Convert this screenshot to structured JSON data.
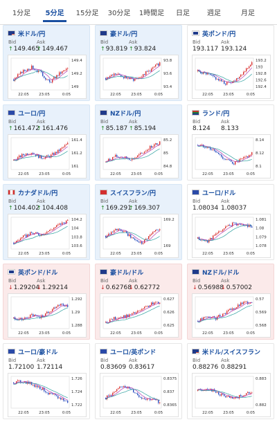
{
  "tabs": [
    {
      "label": "1分足",
      "active": false
    },
    {
      "label": "5分足",
      "active": true
    },
    {
      "label": "15分足",
      "active": false
    },
    {
      "label": "30分足",
      "active": false
    },
    {
      "label": "1時間足",
      "active": false
    },
    {
      "label": "日足",
      "active": false
    },
    {
      "label": "週足",
      "active": false
    },
    {
      "label": "月足",
      "active": false
    }
  ],
  "labels": {
    "bid": "Bid",
    "ask": "Ask"
  },
  "colors": {
    "up_bg": "#e8f1fb",
    "down_bg": "#fbeaea",
    "title": "#1a4fa0",
    "candle_up": "#d93030",
    "candle_down": "#2b4fc0",
    "ma1": "#b03ab0",
    "ma2": "#2ea0a0"
  },
  "pairs": [
    {
      "name": "米ドル/円",
      "flag": "us-flag",
      "state": "up",
      "bid": "149.465",
      "ask": "149.467",
      "arrow": "up",
      "x_labels": [
        "22:05",
        "23:05",
        "0:05"
      ],
      "y_labels": [
        "149.4",
        "149.2",
        "149"
      ],
      "trend": [
        0.3,
        0.6,
        0.75,
        0.55,
        0.2,
        0.5,
        0.7
      ]
    },
    {
      "name": "豪ドル/円",
      "flag": "au-flag",
      "state": "up",
      "bid": "93.819",
      "ask": "93.824",
      "arrow": "up",
      "x_labels": [
        "22:05",
        "23:05",
        "0:05"
      ],
      "y_labels": [
        "93.8",
        "93.6",
        "93.4"
      ],
      "trend": [
        0.35,
        0.5,
        0.4,
        0.3,
        0.45,
        0.65,
        0.9
      ]
    },
    {
      "name": "英ポンド/円",
      "flag": "gb-flag",
      "state": "neutral",
      "bid": "193.117",
      "ask": "193.124",
      "arrow": "none",
      "x_labels": [
        "22:05",
        "23:05",
        "0:05"
      ],
      "y_labels": [
        "193.2",
        "193",
        "192.8",
        "192.6",
        "192.4"
      ],
      "trend": [
        0.6,
        0.5,
        0.35,
        0.15,
        0.25,
        0.55,
        0.9
      ]
    },
    {
      "name": "ユーロ/円",
      "flag": "eu-flag",
      "state": "up",
      "bid": "161.472",
      "ask": "161.476",
      "arrow": "up",
      "x_labels": [
        "22:05",
        "23:05",
        "0:05"
      ],
      "y_labels": [
        "161.4",
        "161.2",
        "161"
      ],
      "trend": [
        0.25,
        0.45,
        0.55,
        0.35,
        0.4,
        0.6,
        0.85
      ]
    },
    {
      "name": "NZドル/円",
      "flag": "nz-flag",
      "state": "up",
      "bid": "85.187",
      "ask": "85.194",
      "arrow": "up",
      "x_labels": [
        "22:05",
        "23:05",
        "0:05"
      ],
      "y_labels": [
        "85.2",
        "85",
        "84.8"
      ],
      "trend": [
        0.2,
        0.4,
        0.35,
        0.3,
        0.5,
        0.75,
        0.9
      ]
    },
    {
      "name": "ランド/円",
      "flag": "za-flag",
      "state": "neutral",
      "bid": "8.124",
      "ask": "8.133",
      "arrow": "none",
      "x_labels": [
        "22:05",
        "23:05",
        "0:05"
      ],
      "y_labels": [
        "8.14",
        "8.12",
        "8.1"
      ],
      "trend": [
        0.8,
        0.75,
        0.55,
        0.3,
        0.15,
        0.3,
        0.5
      ]
    },
    {
      "name": "カナダドル/円",
      "flag": "ca-flag",
      "state": "up",
      "bid": "104.402",
      "ask": "104.408",
      "arrow": "up",
      "x_labels": [
        "22:05",
        "23:05",
        "0:05"
      ],
      "y_labels": [
        "104.2",
        "104",
        "103.8",
        "103.6"
      ],
      "trend": [
        0.15,
        0.35,
        0.5,
        0.45,
        0.6,
        0.8,
        0.95
      ]
    },
    {
      "name": "スイスフラン/円",
      "flag": "ch-flag",
      "state": "up",
      "bid": "169.291",
      "ask": "169.307",
      "arrow": "up",
      "x_labels": [
        "22:05",
        "23:05",
        "0:05"
      ],
      "y_labels": [
        "169.2",
        "169"
      ],
      "trend": [
        0.4,
        0.65,
        0.55,
        0.3,
        0.15,
        0.45,
        0.7
      ]
    },
    {
      "name": "ユーロ/ドル",
      "flag": "eu-flag",
      "state": "neutral",
      "bid": "1.08034",
      "ask": "1.08037",
      "arrow": "none",
      "x_labels": [
        "22:05",
        "23:05",
        "0:05"
      ],
      "y_labels": [
        "1.081",
        "1.08",
        "1.079",
        "1.078"
      ],
      "trend": [
        0.3,
        0.2,
        0.45,
        0.7,
        0.85,
        0.8,
        0.75
      ]
    },
    {
      "name": "英ポンド/ドル",
      "flag": "gb-flag",
      "state": "down",
      "bid": "1.29204",
      "ask": "1.29214",
      "arrow": "down",
      "x_labels": [
        "22:05",
        "23:05",
        "0:05"
      ],
      "y_labels": [
        "1.292",
        "1.29",
        "1.288"
      ],
      "trend": [
        0.3,
        0.25,
        0.4,
        0.35,
        0.55,
        0.8,
        0.75
      ]
    },
    {
      "name": "豪ドル/ドル",
      "flag": "au-flag",
      "state": "down",
      "bid": "0.62768",
      "ask": "0.62772",
      "arrow": "down",
      "x_labels": [
        "22:05",
        "23:05",
        "0:05"
      ],
      "y_labels": [
        "0.627",
        "0.626",
        "0.625"
      ],
      "trend": [
        0.15,
        0.3,
        0.35,
        0.45,
        0.6,
        0.8,
        0.9
      ]
    },
    {
      "name": "NZドル/ドル",
      "flag": "nz-flag",
      "state": "down",
      "bid": "0.56988",
      "ask": "0.57002",
      "arrow": "down",
      "x_labels": [
        "22:05",
        "23:05",
        "0:05"
      ],
      "y_labels": [
        "0.57",
        "0.569",
        "0.568"
      ],
      "trend": [
        0.2,
        0.35,
        0.3,
        0.5,
        0.65,
        0.85,
        0.9
      ]
    },
    {
      "name": "ユーロ/豪ドル",
      "flag": "eu-flag",
      "state": "neutral",
      "bid": "1.72100",
      "ask": "1.72114",
      "arrow": "none",
      "x_labels": [
        "22:05",
        "23:05",
        "0:05"
      ],
      "y_labels": [
        "1.726",
        "1.724",
        "1.722"
      ],
      "trend": [
        0.85,
        0.9,
        0.8,
        0.65,
        0.45,
        0.3,
        0.15
      ]
    },
    {
      "name": "ユーロ/英ポンド",
      "flag": "eu-flag",
      "state": "neutral",
      "bid": "0.83609",
      "ask": "0.83617",
      "arrow": "none",
      "x_labels": [
        "22:05",
        "23:05",
        "0:05"
      ],
      "y_labels": [
        "0.8375",
        "0.837",
        "0.8365"
      ],
      "trend": [
        0.3,
        0.5,
        0.75,
        0.55,
        0.3,
        0.25,
        0.15
      ]
    },
    {
      "name": "米ドル/スイスフラン",
      "flag": "us-flag",
      "state": "neutral",
      "bid": "0.88276",
      "ask": "0.88291",
      "arrow": "none",
      "x_labels": [
        "22:05",
        "23:05",
        "0:05"
      ],
      "y_labels": [
        "0.883",
        "0.882"
      ],
      "trend": [
        0.55,
        0.65,
        0.5,
        0.35,
        0.25,
        0.4,
        0.5
      ]
    }
  ]
}
